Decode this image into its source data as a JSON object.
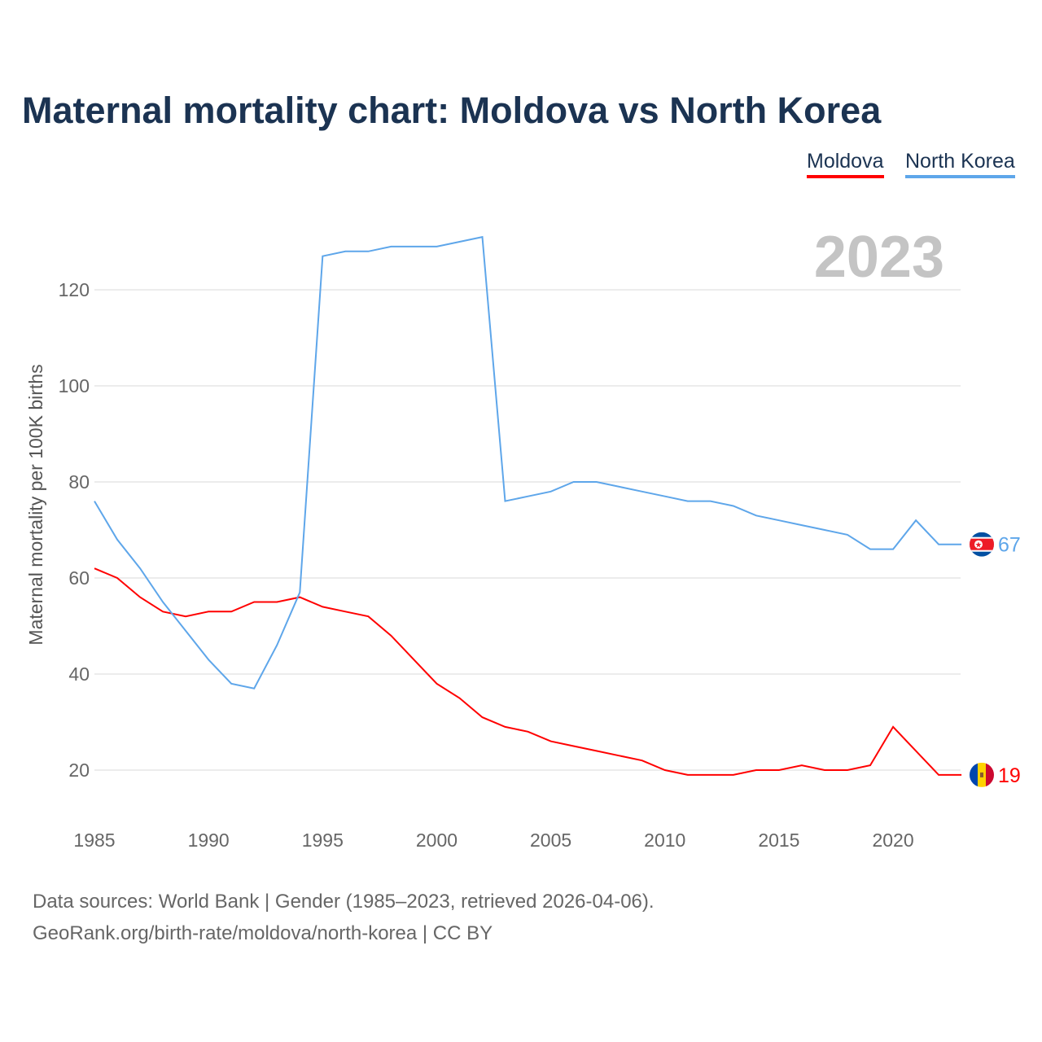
{
  "chart_data": {
    "type": "line",
    "title": "Maternal mortality chart: Moldova vs North Korea",
    "ylabel": "Maternal mortality per 100K births",
    "xlabel": "",
    "year_label": "2023",
    "ylim": [
      0,
      140
    ],
    "xlim": [
      1985,
      2023
    ],
    "yticks": [
      20,
      40,
      60,
      80,
      100,
      120
    ],
    "xticks": [
      1985,
      1990,
      1995,
      2000,
      2005,
      2010,
      2015,
      2020
    ],
    "grid": true,
    "legend_position": "top-right",
    "x": [
      1985,
      1986,
      1987,
      1988,
      1989,
      1990,
      1991,
      1992,
      1993,
      1994,
      1995,
      1996,
      1997,
      1998,
      1999,
      2000,
      2001,
      2002,
      2003,
      2004,
      2005,
      2006,
      2007,
      2008,
      2009,
      2010,
      2011,
      2012,
      2013,
      2014,
      2015,
      2016,
      2017,
      2018,
      2019,
      2020,
      2021,
      2022,
      2023
    ],
    "series": [
      {
        "name": "Moldova",
        "color": "#ff0000",
        "end_label": "19",
        "values": [
          62,
          60,
          56,
          53,
          52,
          53,
          53,
          55,
          55,
          56,
          54,
          53,
          52,
          48,
          43,
          38,
          35,
          31,
          29,
          28,
          26,
          25,
          24,
          23,
          22,
          20,
          19,
          19,
          19,
          20,
          20,
          21,
          20,
          20,
          21,
          29,
          24,
          19,
          19
        ]
      },
      {
        "name": "North Korea",
        "color": "#5ea6ea",
        "end_label": "67",
        "values": [
          76,
          68,
          62,
          55,
          49,
          43,
          38,
          37,
          46,
          57,
          127,
          128,
          128,
          129,
          129,
          129,
          130,
          131,
          76,
          77,
          78,
          80,
          80,
          79,
          78,
          77,
          76,
          76,
          75,
          73,
          72,
          71,
          70,
          69,
          66,
          66,
          72,
          67,
          67
        ]
      }
    ]
  },
  "footer": {
    "line1": "Data sources: World Bank | Gender (1985–2023, retrieved 2026-04-06).",
    "line2": "GeoRank.org/birth-rate/moldova/north-korea | CC BY"
  }
}
